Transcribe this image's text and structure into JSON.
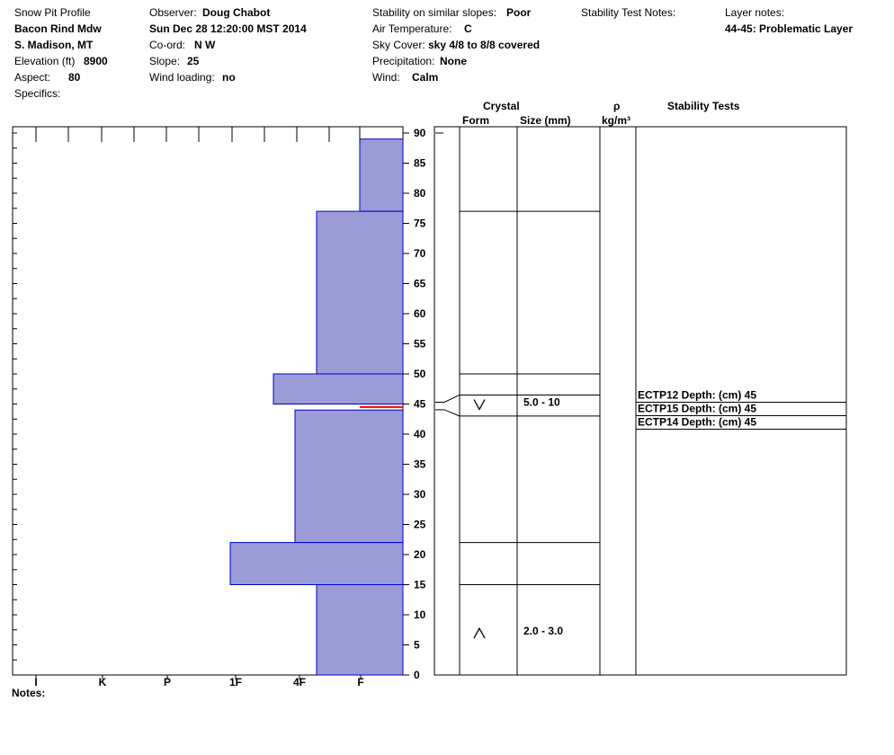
{
  "header": {
    "profile_title": "Snow Pit Profile",
    "location_name": "Bacon Rind Mdw",
    "region": "S. Madison, MT",
    "elevation_label": "Elevation (ft)",
    "elevation_value": "8900",
    "aspect_label": "Aspect:",
    "aspect_value": "80",
    "specifics_label": "Specifics:",
    "observer_label": "Observer:",
    "observer_value": "Doug Chabot",
    "datetime": "Sun Dec 28 12:20:00 MST 2014",
    "coord_label": "Co-ord:",
    "coord_value": "N  W",
    "slope_label": "Slope:",
    "slope_value": "25",
    "wind_loading_label": "Wind loading:",
    "wind_loading_value": "no",
    "stability_label": "Stability on similar slopes:",
    "stability_value": "Poor",
    "air_temp_label": "Air Temperature:",
    "air_temp_value": "C",
    "sky_cover_label": "Sky Cover:",
    "sky_cover_value": "sky 4/8 to 8/8 covered",
    "precip_label": "Precipitation:",
    "precip_value": "None",
    "wind_label": "Wind:",
    "wind_value": "Calm",
    "stability_test_notes_label": "Stability Test Notes:",
    "layer_notes_label": "Layer notes:",
    "layer_notes_value": "44-45: Problematic Layer"
  },
  "columns": {
    "crystal": "Crystal",
    "form": "Form",
    "size": "Size (mm)",
    "rho": "ρ",
    "density_unit": "kg/m³",
    "stability_tests": "Stability Tests"
  },
  "notes_label": "Notes:",
  "chart_data": {
    "type": "bar",
    "orientation": "horizontal",
    "y_axis": {
      "min": 0,
      "max": 90,
      "ticks": [
        "0",
        "5",
        "10",
        "15",
        "20",
        "25",
        "30",
        "35",
        "40",
        "45",
        "50",
        "55",
        "60",
        "65",
        "70",
        "75",
        "80",
        "85",
        "90"
      ]
    },
    "x_axis": {
      "categories": [
        "I",
        "K",
        "P",
        "1F",
        "4F",
        "F"
      ],
      "direction": "right-to-left"
    },
    "hardness_layers": [
      {
        "bottom": 77,
        "top": 89,
        "hardness": "F"
      },
      {
        "bottom": 50,
        "top": 77,
        "hardness": "F+"
      },
      {
        "bottom": 45,
        "top": 50,
        "hardness": "4F"
      },
      {
        "bottom": 44,
        "top": 45,
        "hardness": "F",
        "highlight": true
      },
      {
        "bottom": 22,
        "top": 44,
        "hardness": "4F-"
      },
      {
        "bottom": 15,
        "top": 22,
        "hardness": "1F-"
      },
      {
        "bottom": 0,
        "top": 15,
        "hardness": "F+"
      }
    ],
    "layer_boundaries": [
      77,
      50,
      46.5,
      43,
      22,
      15
    ],
    "crystals": [
      {
        "depth": 45,
        "form": "depth-hoar",
        "size": "5.0 - 10"
      },
      {
        "depth": 7,
        "form": "faceted",
        "size": "2.0 - 3.0"
      }
    ],
    "stability_tests": [
      {
        "label": "ECTP12   Depth: (cm) 45"
      },
      {
        "label": "ECTP15   Depth: (cm) 45"
      },
      {
        "label": "ECTP14   Depth: (cm) 45"
      }
    ],
    "colors": {
      "bar": "#9b9bd7",
      "bar_stroke": "#0000cc",
      "highlight": "#ff0000"
    }
  }
}
